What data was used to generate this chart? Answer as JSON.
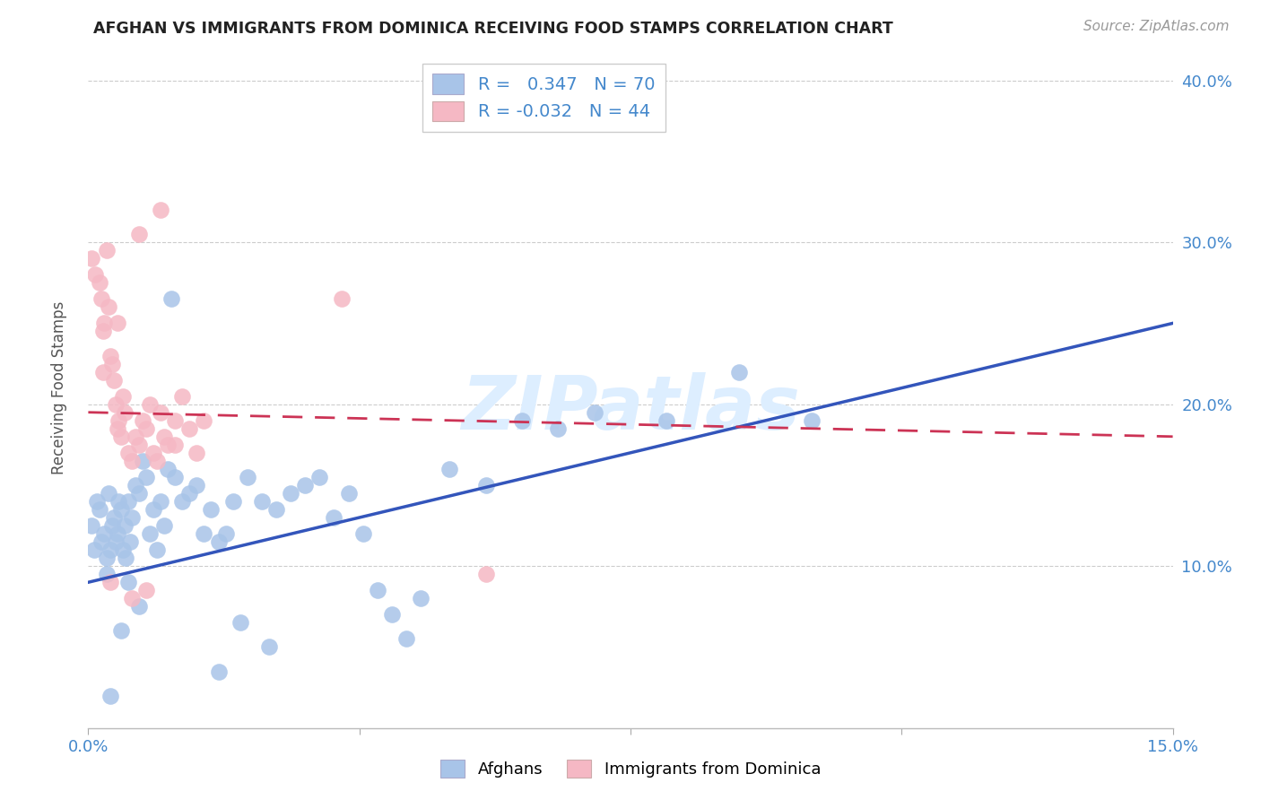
{
  "title": "AFGHAN VS IMMIGRANTS FROM DOMINICA RECEIVING FOOD STAMPS CORRELATION CHART",
  "source": "Source: ZipAtlas.com",
  "ylabel": "Receiving Food Stamps",
  "xmin": 0.0,
  "xmax": 15.0,
  "ymin": 0.0,
  "ymax": 42.0,
  "yticks": [
    10.0,
    20.0,
    30.0,
    40.0
  ],
  "xtick_vals": [
    0.0,
    3.75,
    7.5,
    11.25,
    15.0
  ],
  "xtick_labels": [
    "0.0%",
    "",
    "",
    "",
    "15.0%"
  ],
  "blue_R": "0.347",
  "blue_N": "70",
  "pink_R": "-0.032",
  "pink_N": "44",
  "blue_scatter_color": "#a8c4e8",
  "pink_scatter_color": "#f5b8c4",
  "blue_line_color": "#3355bb",
  "pink_line_color": "#cc3355",
  "tick_color": "#4488cc",
  "grid_color": "#cccccc",
  "watermark_color": "#ddeeff",
  "background_color": "#ffffff",
  "legend_label_blue": "Afghans",
  "legend_label_pink": "Immigrants from Dominica",
  "blue_points_x": [
    0.05,
    0.08,
    0.12,
    0.15,
    0.18,
    0.22,
    0.25,
    0.28,
    0.3,
    0.33,
    0.35,
    0.38,
    0.4,
    0.42,
    0.45,
    0.48,
    0.5,
    0.52,
    0.55,
    0.58,
    0.6,
    0.65,
    0.7,
    0.75,
    0.8,
    0.85,
    0.9,
    0.95,
    1.0,
    1.05,
    1.1,
    1.2,
    1.3,
    1.4,
    1.5,
    1.6,
    1.7,
    1.8,
    1.9,
    2.0,
    2.2,
    2.4,
    2.6,
    2.8,
    3.0,
    3.2,
    3.4,
    3.6,
    3.8,
    4.0,
    4.2,
    4.4,
    4.6,
    5.0,
    5.5,
    6.0,
    6.5,
    7.0,
    8.0,
    9.0,
    10.0,
    1.15,
    0.7,
    0.45,
    2.1,
    0.3,
    1.8,
    2.5,
    0.55,
    0.25
  ],
  "blue_points_y": [
    12.5,
    11.0,
    14.0,
    13.5,
    11.5,
    12.0,
    10.5,
    14.5,
    11.0,
    12.5,
    13.0,
    11.5,
    12.0,
    14.0,
    13.5,
    11.0,
    12.5,
    10.5,
    14.0,
    11.5,
    13.0,
    15.0,
    14.5,
    16.5,
    15.5,
    12.0,
    13.5,
    11.0,
    14.0,
    12.5,
    16.0,
    15.5,
    14.0,
    14.5,
    15.0,
    12.0,
    13.5,
    11.5,
    12.0,
    14.0,
    15.5,
    14.0,
    13.5,
    14.5,
    15.0,
    15.5,
    13.0,
    14.5,
    12.0,
    8.5,
    7.0,
    5.5,
    8.0,
    16.0,
    15.0,
    19.0,
    18.5,
    19.5,
    19.0,
    22.0,
    19.0,
    26.5,
    7.5,
    6.0,
    6.5,
    2.0,
    3.5,
    5.0,
    9.0,
    9.5
  ],
  "pink_points_x": [
    0.05,
    0.1,
    0.15,
    0.18,
    0.2,
    0.22,
    0.25,
    0.28,
    0.3,
    0.33,
    0.35,
    0.38,
    0.4,
    0.42,
    0.45,
    0.48,
    0.5,
    0.55,
    0.6,
    0.65,
    0.7,
    0.75,
    0.8,
    0.85,
    0.9,
    0.95,
    1.0,
    1.05,
    1.1,
    1.2,
    1.3,
    1.4,
    1.5,
    1.6,
    0.4,
    0.2,
    0.7,
    1.0,
    5.5,
    3.5,
    0.8,
    0.3,
    1.2,
    0.6
  ],
  "pink_points_y": [
    29.0,
    28.0,
    27.5,
    26.5,
    24.5,
    25.0,
    29.5,
    26.0,
    23.0,
    22.5,
    21.5,
    20.0,
    18.5,
    19.0,
    18.0,
    20.5,
    19.5,
    17.0,
    16.5,
    18.0,
    17.5,
    19.0,
    18.5,
    20.0,
    17.0,
    16.5,
    19.5,
    18.0,
    17.5,
    19.0,
    20.5,
    18.5,
    17.0,
    19.0,
    25.0,
    22.0,
    30.5,
    32.0,
    9.5,
    26.5,
    8.5,
    9.0,
    17.5,
    8.0
  ]
}
